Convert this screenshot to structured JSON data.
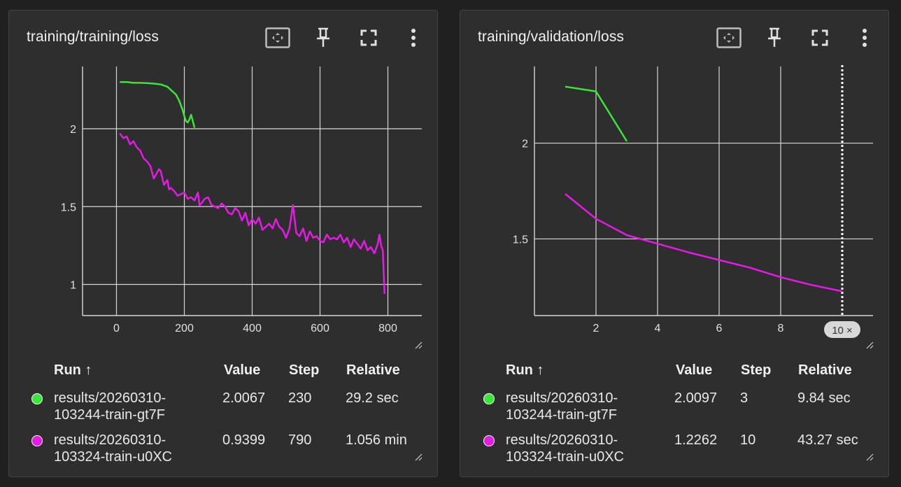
{
  "cards": [
    {
      "title": "training/training/loss",
      "legend": {
        "headers": {
          "run": "Run ↑",
          "value": "Value",
          "step": "Step",
          "relative": "Relative"
        },
        "rows": [
          {
            "run_line1": "results/20260310-",
            "run_line2": "103244-train-gt7F",
            "value": "2.0067",
            "step": "230",
            "relative": "29.2 sec",
            "color": "#39e639"
          },
          {
            "run_line1": "results/20260310-",
            "run_line2": "103324-train-u0XC",
            "value": "0.9399",
            "step": "790",
            "relative": "1.056 min",
            "color": "#e619e6"
          }
        ]
      }
    },
    {
      "title": "training/validation/loss",
      "cursor_label": "10 ×",
      "legend": {
        "headers": {
          "run": "Run ↑",
          "value": "Value",
          "step": "Step",
          "relative": "Relative"
        },
        "rows": [
          {
            "run_line1": "results/20260310-",
            "run_line2": "103244-train-gt7F",
            "value": "2.0097",
            "step": "3",
            "relative": "9.84 sec",
            "color": "#39e639"
          },
          {
            "run_line1": "results/20260310-",
            "run_line2": "103324-train-u0XC",
            "value": "1.2262",
            "step": "10",
            "relative": "43.27 sec",
            "color": "#e619e6"
          }
        ]
      }
    }
  ],
  "chart_data": [
    {
      "type": "line",
      "title": "training/training/loss",
      "xlim": [
        -100,
        900
      ],
      "ylim": [
        0.8,
        2.4
      ],
      "x_ticks": [
        0,
        200,
        400,
        600,
        800
      ],
      "y_ticks": [
        1,
        1.5,
        2
      ],
      "grid": true,
      "series": [
        {
          "name": "results/20260310-103244-train-gt7F",
          "color": "#39e639",
          "x": [
            10,
            30,
            50,
            70,
            90,
            110,
            130,
            150,
            165,
            175,
            185,
            195,
            200,
            205,
            210,
            215,
            220,
            225,
            230
          ],
          "y": [
            2.3,
            2.3,
            2.295,
            2.295,
            2.293,
            2.29,
            2.285,
            2.27,
            2.24,
            2.22,
            2.18,
            2.12,
            2.08,
            2.05,
            2.04,
            2.06,
            2.09,
            2.05,
            2.0067
          ]
        },
        {
          "name": "results/20260310-103324-train-u0XC",
          "color": "#e619e6",
          "x": [
            10,
            20,
            30,
            40,
            50,
            60,
            70,
            80,
            90,
            100,
            110,
            120,
            125,
            130,
            140,
            150,
            155,
            160,
            170,
            180,
            190,
            200,
            210,
            220,
            230,
            240,
            245,
            250,
            260,
            270,
            280,
            290,
            300,
            310,
            320,
            330,
            340,
            350,
            360,
            370,
            380,
            390,
            400,
            410,
            420,
            430,
            440,
            450,
            460,
            470,
            480,
            490,
            500,
            510,
            520,
            530,
            540,
            550,
            560,
            570,
            580,
            590,
            600,
            610,
            620,
            630,
            640,
            650,
            660,
            670,
            680,
            690,
            700,
            710,
            720,
            730,
            740,
            750,
            760,
            770,
            775,
            780,
            785,
            790
          ],
          "y": [
            1.97,
            1.94,
            1.95,
            1.9,
            1.92,
            1.88,
            1.86,
            1.81,
            1.79,
            1.76,
            1.68,
            1.72,
            1.74,
            1.73,
            1.64,
            1.67,
            1.61,
            1.62,
            1.6,
            1.57,
            1.58,
            1.59,
            1.55,
            1.56,
            1.54,
            1.59,
            1.51,
            1.52,
            1.55,
            1.56,
            1.51,
            1.5,
            1.49,
            1.52,
            1.5,
            1.46,
            1.45,
            1.49,
            1.47,
            1.41,
            1.46,
            1.38,
            1.42,
            1.39,
            1.43,
            1.35,
            1.37,
            1.39,
            1.36,
            1.42,
            1.37,
            1.35,
            1.3,
            1.36,
            1.51,
            1.33,
            1.31,
            1.36,
            1.28,
            1.34,
            1.3,
            1.31,
            1.28,
            1.27,
            1.32,
            1.29,
            1.3,
            1.29,
            1.32,
            1.27,
            1.3,
            1.24,
            1.29,
            1.26,
            1.23,
            1.28,
            1.22,
            1.24,
            1.2,
            1.26,
            1.32,
            1.25,
            1.22,
            0.9399
          ]
        }
      ]
    },
    {
      "type": "line",
      "title": "training/validation/loss",
      "xlim": [
        0,
        11
      ],
      "ylim": [
        1.1,
        2.4
      ],
      "x_ticks": [
        2,
        4,
        6,
        8
      ],
      "y_ticks": [
        1.5,
        2
      ],
      "grid": true,
      "cursor_x": 10,
      "series": [
        {
          "name": "results/20260310-103244-train-gt7F",
          "color": "#39e639",
          "x": [
            1,
            2,
            3
          ],
          "y": [
            2.295,
            2.27,
            2.0097
          ]
        },
        {
          "name": "results/20260310-103324-train-u0XC",
          "color": "#e619e6",
          "x": [
            1,
            2,
            3,
            4,
            5,
            6,
            7,
            8,
            9,
            10
          ],
          "y": [
            1.735,
            1.605,
            1.52,
            1.475,
            1.43,
            1.39,
            1.35,
            1.3,
            1.26,
            1.2262
          ]
        }
      ]
    }
  ]
}
